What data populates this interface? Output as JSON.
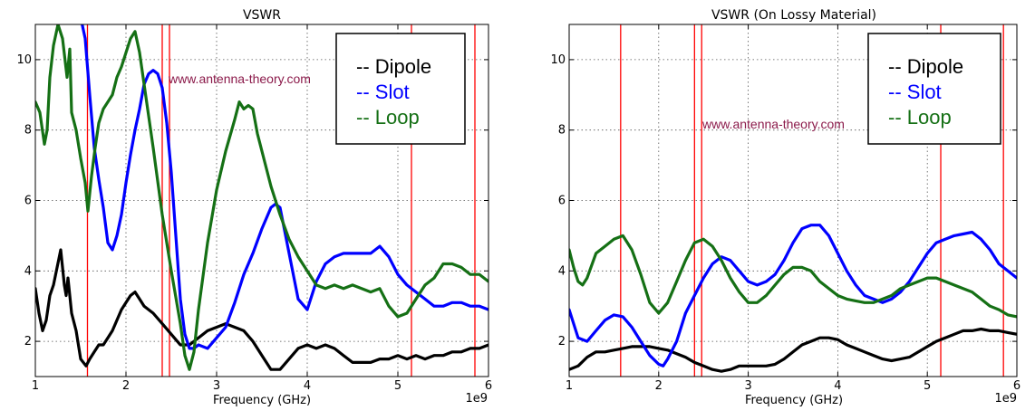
{
  "chart_data": [
    {
      "type": "line",
      "title": "VSWR",
      "xlabel": "Frequency (GHz)",
      "ylabel": "",
      "x_multiplier": "1e9",
      "xlim": [
        1,
        6
      ],
      "ylim": [
        1,
        11
      ],
      "xticks": [
        1,
        2,
        3,
        4,
        5,
        6
      ],
      "yticks": [
        2,
        4,
        6,
        8,
        10
      ],
      "grid": true,
      "legend_position": "top-right",
      "annotation": "www.antenna-theory.com",
      "vlines_color": "#ff0000",
      "vlines": [
        1.575,
        2.4,
        2.48,
        5.15,
        5.85
      ],
      "series": [
        {
          "name": "Dipole",
          "legend_label": "-- Dipole",
          "color": "#000000",
          "x": [
            1.0,
            1.04,
            1.08,
            1.12,
            1.16,
            1.2,
            1.24,
            1.28,
            1.32,
            1.34,
            1.36,
            1.4,
            1.45,
            1.5,
            1.56,
            1.6,
            1.65,
            1.7,
            1.75,
            1.8,
            1.85,
            1.9,
            1.95,
            2.0,
            2.05,
            2.1,
            2.15,
            2.2,
            2.3,
            2.4,
            2.5,
            2.6,
            2.7,
            2.8,
            2.9,
            3.0,
            3.1,
            3.2,
            3.3,
            3.4,
            3.5,
            3.6,
            3.7,
            3.8,
            3.9,
            4.0,
            4.1,
            4.2,
            4.3,
            4.4,
            4.5,
            4.6,
            4.7,
            4.8,
            4.9,
            5.0,
            5.1,
            5.2,
            5.3,
            5.4,
            5.5,
            5.6,
            5.7,
            5.8,
            5.9,
            6.0
          ],
          "y": [
            3.5,
            2.8,
            2.3,
            2.6,
            3.3,
            3.6,
            4.1,
            4.6,
            3.6,
            3.3,
            3.8,
            2.8,
            2.3,
            1.5,
            1.3,
            1.5,
            1.7,
            1.9,
            1.9,
            2.1,
            2.3,
            2.6,
            2.9,
            3.1,
            3.3,
            3.4,
            3.2,
            3.0,
            2.8,
            2.5,
            2.2,
            1.9,
            1.9,
            2.1,
            2.3,
            2.4,
            2.5,
            2.4,
            2.3,
            2.0,
            1.6,
            1.2,
            1.2,
            1.5,
            1.8,
            1.9,
            1.8,
            1.9,
            1.8,
            1.6,
            1.4,
            1.4,
            1.4,
            1.5,
            1.5,
            1.6,
            1.5,
            1.6,
            1.5,
            1.6,
            1.6,
            1.7,
            1.7,
            1.8,
            1.8,
            1.9
          ]
        },
        {
          "name": "Slot",
          "legend_label": "-- Slot",
          "color": "#0000ff",
          "x": [
            1.5,
            1.55,
            1.6,
            1.65,
            1.7,
            1.75,
            1.8,
            1.85,
            1.9,
            1.95,
            2.0,
            2.05,
            2.1,
            2.15,
            2.2,
            2.25,
            2.3,
            2.35,
            2.4,
            2.45,
            2.5,
            2.55,
            2.6,
            2.65,
            2.7,
            2.75,
            2.8,
            2.9,
            3.0,
            3.1,
            3.2,
            3.3,
            3.4,
            3.5,
            3.6,
            3.65,
            3.7,
            3.8,
            3.9,
            4.0,
            4.1,
            4.2,
            4.3,
            4.4,
            4.5,
            4.6,
            4.7,
            4.8,
            4.9,
            5.0,
            5.1,
            5.2,
            5.3,
            5.4,
            5.5,
            5.6,
            5.7,
            5.8,
            5.9,
            6.0
          ],
          "y": [
            11.2,
            10.6,
            9.0,
            7.5,
            6.6,
            5.8,
            4.8,
            4.6,
            5.0,
            5.6,
            6.5,
            7.3,
            8.0,
            8.6,
            9.3,
            9.6,
            9.7,
            9.6,
            9.2,
            8.2,
            6.8,
            5.0,
            3.2,
            2.2,
            1.8,
            1.8,
            1.9,
            1.8,
            2.1,
            2.4,
            3.1,
            3.9,
            4.5,
            5.2,
            5.8,
            5.9,
            5.8,
            4.5,
            3.2,
            2.9,
            3.7,
            4.2,
            4.4,
            4.5,
            4.5,
            4.5,
            4.5,
            4.7,
            4.4,
            3.9,
            3.6,
            3.4,
            3.2,
            3.0,
            3.0,
            3.1,
            3.1,
            3.0,
            3.0,
            2.9
          ]
        },
        {
          "name": "Loop",
          "legend_label": "-- Loop",
          "color": "#157015",
          "x": [
            1.0,
            1.05,
            1.1,
            1.13,
            1.16,
            1.2,
            1.25,
            1.3,
            1.35,
            1.38,
            1.4,
            1.45,
            1.5,
            1.55,
            1.58,
            1.62,
            1.66,
            1.7,
            1.75,
            1.8,
            1.85,
            1.9,
            1.95,
            2.0,
            2.05,
            2.1,
            2.15,
            2.2,
            2.3,
            2.4,
            2.5,
            2.6,
            2.65,
            2.7,
            2.75,
            2.8,
            2.9,
            3.0,
            3.1,
            3.2,
            3.25,
            3.3,
            3.35,
            3.4,
            3.45,
            3.5,
            3.6,
            3.7,
            3.8,
            3.9,
            4.0,
            4.1,
            4.2,
            4.3,
            4.4,
            4.5,
            4.6,
            4.7,
            4.8,
            4.9,
            5.0,
            5.1,
            5.2,
            5.3,
            5.4,
            5.5,
            5.6,
            5.7,
            5.8,
            5.9,
            6.0
          ],
          "y": [
            8.8,
            8.5,
            7.6,
            8.0,
            9.5,
            10.4,
            11.0,
            10.6,
            9.5,
            10.3,
            8.5,
            8.0,
            7.2,
            6.5,
            5.7,
            6.7,
            7.5,
            8.2,
            8.6,
            8.8,
            9.0,
            9.5,
            9.8,
            10.2,
            10.6,
            10.8,
            10.2,
            9.3,
            7.5,
            5.6,
            4.0,
            2.5,
            1.6,
            1.2,
            1.7,
            2.9,
            4.8,
            6.3,
            7.4,
            8.3,
            8.8,
            8.6,
            8.7,
            8.6,
            7.9,
            7.4,
            6.4,
            5.6,
            4.9,
            4.4,
            4.0,
            3.6,
            3.5,
            3.6,
            3.5,
            3.6,
            3.5,
            3.4,
            3.5,
            3.0,
            2.7,
            2.8,
            3.2,
            3.6,
            3.8,
            4.2,
            4.2,
            4.1,
            3.9,
            3.9,
            3.7
          ]
        }
      ]
    },
    {
      "type": "line",
      "title": "VSWR (On Lossy Material)",
      "xlabel": "Frequency (GHz)",
      "ylabel": "",
      "x_multiplier": "1e9",
      "xlim": [
        1,
        6
      ],
      "ylim": [
        1,
        11
      ],
      "xticks": [
        1,
        2,
        3,
        4,
        5,
        6
      ],
      "yticks": [
        2,
        4,
        6,
        8,
        10
      ],
      "grid": true,
      "legend_position": "top-right",
      "annotation": "www.antenna-theory.com",
      "vlines_color": "#ff0000",
      "vlines": [
        1.575,
        2.4,
        2.48,
        5.15,
        5.85
      ],
      "series": [
        {
          "name": "Dipole",
          "legend_label": "-- Dipole",
          "color": "#000000",
          "x": [
            1.0,
            1.1,
            1.2,
            1.3,
            1.4,
            1.5,
            1.6,
            1.7,
            1.8,
            1.9,
            2.0,
            2.1,
            2.2,
            2.3,
            2.4,
            2.5,
            2.6,
            2.7,
            2.8,
            2.9,
            3.0,
            3.1,
            3.2,
            3.3,
            3.4,
            3.5,
            3.6,
            3.7,
            3.8,
            3.9,
            4.0,
            4.1,
            4.2,
            4.3,
            4.4,
            4.5,
            4.6,
            4.7,
            4.8,
            4.9,
            5.0,
            5.1,
            5.2,
            5.3,
            5.4,
            5.5,
            5.6,
            5.7,
            5.8,
            5.9,
            6.0
          ],
          "y": [
            1.2,
            1.3,
            1.55,
            1.7,
            1.7,
            1.75,
            1.8,
            1.85,
            1.85,
            1.85,
            1.8,
            1.75,
            1.65,
            1.55,
            1.4,
            1.3,
            1.2,
            1.15,
            1.2,
            1.3,
            1.3,
            1.3,
            1.3,
            1.35,
            1.5,
            1.7,
            1.9,
            2.0,
            2.1,
            2.1,
            2.05,
            1.9,
            1.8,
            1.7,
            1.6,
            1.5,
            1.45,
            1.5,
            1.55,
            1.7,
            1.85,
            2.0,
            2.1,
            2.2,
            2.3,
            2.3,
            2.35,
            2.3,
            2.3,
            2.25,
            2.2
          ]
        },
        {
          "name": "Slot",
          "legend_label": "-- Slot",
          "color": "#0000ff",
          "x": [
            1.0,
            1.1,
            1.2,
            1.3,
            1.4,
            1.5,
            1.6,
            1.7,
            1.8,
            1.9,
            2.0,
            2.05,
            2.1,
            2.2,
            2.3,
            2.4,
            2.5,
            2.6,
            2.7,
            2.8,
            2.9,
            3.0,
            3.1,
            3.2,
            3.3,
            3.4,
            3.5,
            3.6,
            3.7,
            3.8,
            3.9,
            4.0,
            4.1,
            4.2,
            4.3,
            4.4,
            4.5,
            4.6,
            4.7,
            4.8,
            4.9,
            5.0,
            5.1,
            5.2,
            5.3,
            5.4,
            5.5,
            5.6,
            5.7,
            5.8,
            5.9,
            6.0
          ],
          "y": [
            2.9,
            2.1,
            2.0,
            2.3,
            2.6,
            2.75,
            2.7,
            2.4,
            2.0,
            1.6,
            1.35,
            1.3,
            1.5,
            2.0,
            2.8,
            3.3,
            3.8,
            4.2,
            4.4,
            4.3,
            4.0,
            3.7,
            3.6,
            3.7,
            3.9,
            4.3,
            4.8,
            5.2,
            5.3,
            5.3,
            5.0,
            4.5,
            4.0,
            3.6,
            3.3,
            3.2,
            3.1,
            3.2,
            3.4,
            3.7,
            4.1,
            4.5,
            4.8,
            4.9,
            5.0,
            5.05,
            5.1,
            4.9,
            4.6,
            4.2,
            4.0,
            3.8
          ]
        },
        {
          "name": "Loop",
          "legend_label": "-- Loop",
          "color": "#157015",
          "x": [
            1.0,
            1.05,
            1.1,
            1.15,
            1.2,
            1.3,
            1.4,
            1.5,
            1.6,
            1.7,
            1.8,
            1.9,
            2.0,
            2.1,
            2.2,
            2.3,
            2.4,
            2.5,
            2.6,
            2.7,
            2.8,
            2.9,
            3.0,
            3.1,
            3.2,
            3.3,
            3.4,
            3.5,
            3.6,
            3.7,
            3.8,
            3.9,
            4.0,
            4.1,
            4.2,
            4.3,
            4.4,
            4.5,
            4.6,
            4.7,
            4.8,
            4.9,
            5.0,
            5.1,
            5.2,
            5.3,
            5.4,
            5.5,
            5.6,
            5.7,
            5.8,
            5.9,
            6.0
          ],
          "y": [
            4.6,
            4.1,
            3.7,
            3.6,
            3.8,
            4.5,
            4.7,
            4.9,
            5.0,
            4.6,
            3.9,
            3.1,
            2.8,
            3.1,
            3.7,
            4.3,
            4.8,
            4.9,
            4.7,
            4.3,
            3.8,
            3.4,
            3.1,
            3.1,
            3.3,
            3.6,
            3.9,
            4.1,
            4.1,
            4.0,
            3.7,
            3.5,
            3.3,
            3.2,
            3.15,
            3.1,
            3.1,
            3.2,
            3.3,
            3.5,
            3.6,
            3.7,
            3.8,
            3.8,
            3.7,
            3.6,
            3.5,
            3.4,
            3.2,
            3.0,
            2.9,
            2.75,
            2.7
          ]
        }
      ]
    }
  ]
}
